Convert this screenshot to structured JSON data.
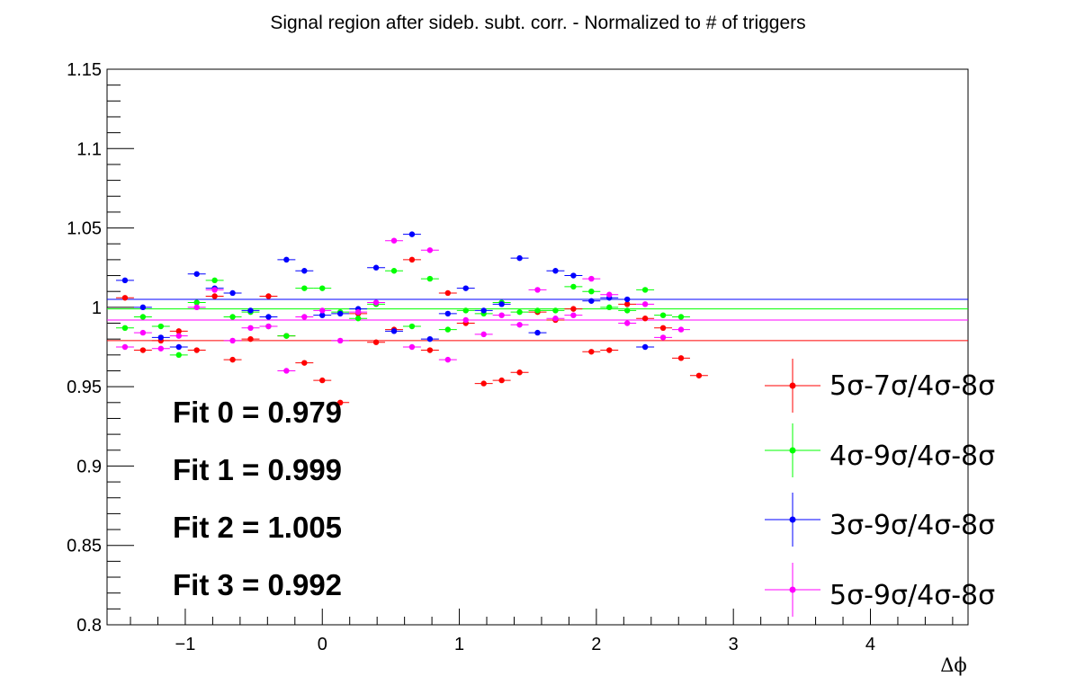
{
  "chart_data": {
    "type": "scatter",
    "title": "Signal region after sideb. subt. corr. - Normalized to # of triggers",
    "xlabel": "Δϕ",
    "ylabel": "",
    "xlim": [
      -1.5708,
      4.7124
    ],
    "ylim": [
      0.8,
      1.15
    ],
    "xticks": [
      -1,
      0,
      1,
      2,
      3,
      4
    ],
    "xtick_labels": [
      "−1",
      "0",
      "1",
      "2",
      "3",
      "4"
    ],
    "yticks": [
      0.8,
      0.85,
      0.9,
      0.95,
      1,
      1.05,
      1.1,
      1.15
    ],
    "ytick_labels": [
      "0.8",
      "0.85",
      "0.9",
      "0.95",
      "1",
      "1.05",
      "1.1",
      "1.15"
    ],
    "x": [
      -1.4399,
      -1.309,
      -1.1781,
      -1.0472,
      -0.9163,
      -0.7854,
      -0.6545,
      -0.5236,
      -0.3927,
      -0.2618,
      -0.1309,
      0.0,
      0.1309,
      0.2618,
      0.3927,
      0.5236,
      0.6545,
      0.7854,
      0.9163,
      1.0472,
      1.1781,
      1.309,
      1.4399,
      1.5708,
      1.7017,
      1.8326,
      1.9635,
      2.0944,
      2.2253,
      2.3562,
      2.4871,
      2.618,
      2.7489,
      2.8798,
      3.0107,
      3.1416,
      3.2725,
      3.4034,
      3.5343,
      3.6652,
      3.7961,
      3.927,
      4.0579,
      4.1888,
      4.3197,
      4.4506,
      4.5815
    ],
    "series": [
      {
        "name": "5σ-7σ/4σ-8σ",
        "color": "#ff0000",
        "fit": 0.979,
        "values": [
          1.006,
          0.973,
          0.979,
          0.985,
          0.973,
          1.007,
          0.967,
          0.98,
          1.007,
          0.982,
          0.965,
          0.954,
          0.94,
          0.996,
          0.978,
          0.986,
          1.03,
          0.973,
          1.009,
          0.99,
          0.952,
          0.954,
          0.959,
          0.997,
          0.992,
          0.999,
          0.972,
          0.973,
          1.002,
          0.993,
          0.987,
          0.968,
          0.957
        ]
      },
      {
        "name": "4σ-9σ/4σ-8σ",
        "color": "#00ff00",
        "fit": 0.999,
        "values": [
          0.987,
          0.994,
          0.988,
          0.97,
          1.003,
          1.017,
          0.994,
          0.997,
          0.988,
          0.982,
          1.012,
          1.012,
          0.997,
          0.993,
          1.002,
          1.023,
          0.988,
          1.018,
          0.986,
          0.998,
          0.996,
          1.003,
          0.997,
          0.998,
          0.998,
          1.013,
          1.01,
          1.0,
          0.998,
          1.011,
          0.995,
          0.994
        ]
      },
      {
        "name": "3σ-9σ/4σ-8σ",
        "color": "#0000ff",
        "fit": 1.005,
        "values": [
          1.017,
          1.0,
          0.981,
          0.975,
          1.021,
          1.012,
          1.009,
          0.998,
          0.994,
          1.03,
          1.023,
          0.995,
          0.996,
          0.999,
          1.025,
          0.985,
          1.046,
          0.98,
          0.996,
          1.012,
          0.998,
          1.002,
          1.031,
          0.984,
          1.023,
          1.02,
          1.004,
          1.006,
          1.005,
          0.975
        ]
      },
      {
        "name": "5σ-9σ/4σ-8σ",
        "color": "#ff00ff",
        "fit": 0.992,
        "values": [
          0.975,
          0.984,
          0.974,
          0.982,
          1.0,
          1.011,
          0.979,
          0.987,
          0.988,
          0.96,
          0.994,
          0.998,
          0.979,
          0.997,
          1.003,
          1.042,
          0.975,
          1.036,
          0.967,
          0.992,
          0.983,
          0.995,
          0.989,
          1.011,
          0.993,
          0.995,
          1.018,
          1.008,
          0.99,
          1.002,
          0.981,
          0.986
        ]
      }
    ],
    "fit_labels": [
      "Fit 0 = 0.979",
      "Fit 1 = 0.999",
      "Fit 2 = 1.005",
      "Fit 3 = 0.992"
    ],
    "legend": [
      "5σ-7σ/4σ-8σ",
      "4σ-9σ/4σ-8σ",
      "3σ-9σ/4σ-8σ",
      "5σ-9σ/4σ-8σ"
    ],
    "legend_position": "bottom-right",
    "grid": false
  }
}
